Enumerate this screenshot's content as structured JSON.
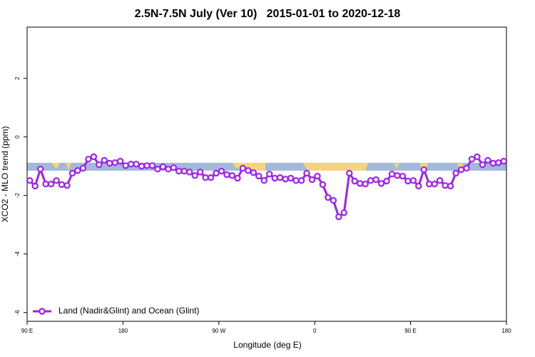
{
  "chart_data": {
    "type": "line",
    "title": "2.5N-7.5N July (Ver 10)   2015-01-01 to 2020-12-18",
    "x_label": "Longitude (deg E)",
    "y_label": "XCO2 - MLO trend (ppm)",
    "xlim": [
      90,
      540
    ],
    "xticks": [
      {
        "value": 90,
        "label": "90 E"
      },
      180,
      {
        "value": 270,
        "label": "90 W"
      },
      {
        "value": 360,
        "label": "0"
      },
      {
        "value": 450,
        "label": "90 E"
      },
      {
        "value": 540,
        "label": "180"
      }
    ],
    "ylim": [
      -6.3,
      3.75
    ],
    "yticks": [
      2,
      0,
      -2,
      -4,
      -6
    ],
    "legend": "bottomleft",
    "x": [
      92.5,
      97.5,
      102.5,
      107.5,
      112.5,
      117.5,
      122.5,
      127.5,
      132.5,
      137.5,
      142.5,
      147.5,
      152.5,
      157.5,
      162.5,
      167.5,
      172.5,
      177.5,
      182.5,
      187.5,
      192.5,
      197.5,
      202.5,
      207.5,
      212.5,
      217.5,
      222.5,
      227.5,
      232.5,
      237.5,
      242.5,
      247.5,
      252.5,
      257.5,
      262.5,
      267.5,
      272.5,
      277.5,
      282.5,
      287.5,
      292.5,
      297.5,
      302.5,
      307.5,
      312.5,
      317.5,
      322.5,
      327.5,
      332.5,
      337.5,
      342.5,
      347.5,
      352.5,
      357.5,
      362.5,
      367.5,
      372.5,
      377.5,
      382.5,
      387.5,
      392.5,
      397.5,
      402.5,
      407.5,
      412.5,
      417.5,
      422.5,
      427.5,
      432.5,
      437.5,
      442.5,
      447.5,
      452.5,
      457.5,
      462.5,
      467.5,
      472.5,
      477.5,
      482.5,
      487.5,
      492.5,
      497.5,
      502.5,
      507.5,
      512.5,
      517.5,
      522.5,
      527.5,
      532.5,
      537.5
    ],
    "series": [
      {
        "name": "Land (Nadir&Glint) and Ocean (Glint)",
        "color": "#a020f0",
        "values": [
          -1.49,
          -1.68,
          -1.1,
          -1.61,
          -1.61,
          -1.49,
          -1.63,
          -1.66,
          -1.24,
          -1.15,
          -1.07,
          -0.76,
          -0.68,
          -0.95,
          -0.8,
          -0.9,
          -0.88,
          -0.83,
          -0.98,
          -0.93,
          -0.93,
          -1.0,
          -0.98,
          -0.98,
          -1.1,
          -1.02,
          -1.1,
          -1.05,
          -1.17,
          -1.17,
          -1.2,
          -1.32,
          -1.2,
          -1.39,
          -1.39,
          -1.24,
          -1.17,
          -1.29,
          -1.32,
          -1.41,
          -1.07,
          -1.15,
          -1.22,
          -1.34,
          -1.49,
          -1.27,
          -1.41,
          -1.39,
          -1.44,
          -1.41,
          -1.49,
          -1.49,
          -1.24,
          -1.46,
          -1.34,
          -1.63,
          -2.07,
          -2.17,
          -2.73,
          -2.59,
          -1.24,
          -1.51,
          -1.59,
          -1.61,
          -1.49,
          -1.46,
          -1.59,
          -1.51,
          -1.27,
          -1.32,
          -1.34,
          -1.51,
          -1.49,
          -1.68,
          -1.12,
          -1.61,
          -1.61,
          -1.49,
          -1.66,
          -1.68,
          -1.24,
          -1.12,
          -1.07,
          -0.76,
          -0.68,
          -0.95,
          -0.8,
          -0.9,
          -0.88,
          -0.83
        ]
      }
    ]
  }
}
